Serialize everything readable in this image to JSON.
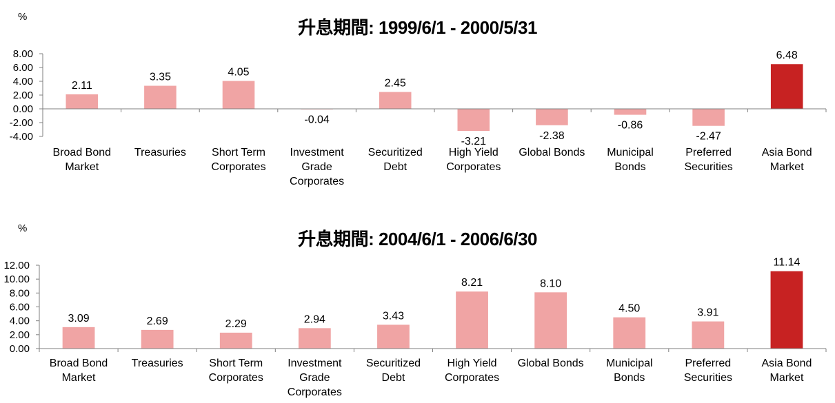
{
  "colors": {
    "bar": "#f0a4a4",
    "highlight": "#c72222",
    "axis": "#7f7f7f",
    "text": "#000000"
  },
  "chart_data": [
    {
      "type": "bar",
      "title": "升息期間: 1999/6/1 - 2000/5/31",
      "ylabel": "%",
      "xlabel": "",
      "categories": [
        "Broad Bond\nMarket",
        "Treasuries",
        "Short Term\nCorporates",
        "Investment\nGrade\nCorporates",
        "Securitized\nDebt",
        "High Yield\nCorporates",
        "Global Bonds",
        "Municipal\nBonds",
        "Preferred\nSecurities",
        "Asia Bond\nMarket"
      ],
      "values": [
        2.11,
        3.35,
        4.05,
        -0.04,
        2.45,
        -3.21,
        -2.38,
        -0.86,
        -2.47,
        6.48
      ],
      "value_labels": [
        "2.11",
        "3.35",
        "4.05",
        "-0.04",
        "2.45",
        "-3.21",
        "-2.38",
        "-0.86",
        "-2.47",
        "6.48"
      ],
      "highlight_index": 9,
      "ylim": [
        -4,
        8
      ],
      "yticks": [
        "8.00",
        "6.00",
        "4.00",
        "2.00",
        "0.00",
        "-2.00",
        "-4.00"
      ],
      "grid": false,
      "legend": "none"
    },
    {
      "type": "bar",
      "title": "升息期間: 2004/6/1 - 2006/6/30",
      "ylabel": "%",
      "xlabel": "",
      "categories": [
        "Broad Bond\nMarket",
        "Treasuries",
        "Short Term\nCorporates",
        "Investment\nGrade\nCorporates",
        "Securitized\nDebt",
        "High Yield\nCorporates",
        "Global Bonds",
        "Municipal\nBonds",
        "Preferred\nSecurities",
        "Asia Bond\nMarket"
      ],
      "values": [
        3.09,
        2.69,
        2.29,
        2.94,
        3.43,
        8.21,
        8.1,
        4.5,
        3.91,
        11.14
      ],
      "value_labels": [
        "3.09",
        "2.69",
        "2.29",
        "2.94",
        "3.43",
        "8.21",
        "8.10",
        "4.50",
        "3.91",
        "11.14"
      ],
      "highlight_index": 9,
      "ylim": [
        0,
        12
      ],
      "yticks": [
        "12.00",
        "10.00",
        "8.00",
        "6.00",
        "4.00",
        "2.00",
        "0.00"
      ],
      "grid": false,
      "legend": "none"
    }
  ]
}
